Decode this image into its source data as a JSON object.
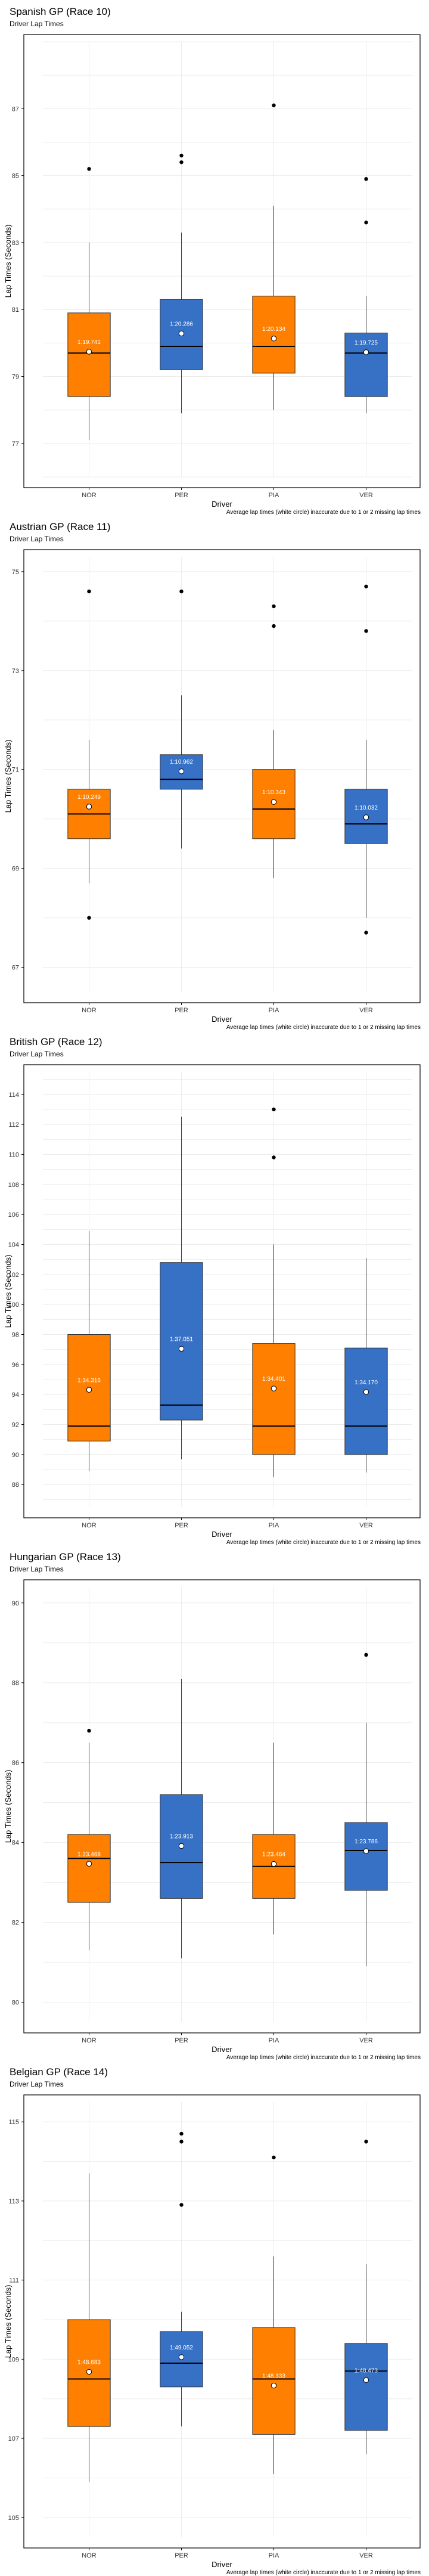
{
  "chart_data": [
    {
      "type": "box",
      "title": "Spanish GP (Race 10)",
      "subtitle": "Driver Lap Times",
      "xlabel": "Driver",
      "ylabel": "Lap Times (Seconds)",
      "ylim": [
        76,
        89
      ],
      "yticks": [
        77,
        79,
        81,
        83,
        85,
        87
      ],
      "note": "Average lap times (white circle) inaccurate due to 1 or 2 missing lap times",
      "grid": true,
      "colors": {
        "orange": "#FF8000",
        "blue": "#3671C6"
      },
      "drivers": [
        {
          "name": "NOR",
          "color": "#FF8000",
          "whisker_low": 77.1,
          "q1": 78.4,
          "median": 79.7,
          "q3": 80.9,
          "whisker_high": 83.0,
          "outliers": [
            85.2
          ],
          "mean": 79.741,
          "mean_label": "1:19.741"
        },
        {
          "name": "PER",
          "color": "#3671C6",
          "whisker_low": 77.9,
          "q1": 79.2,
          "median": 79.9,
          "q3": 81.3,
          "whisker_high": 83.3,
          "outliers": [
            85.4,
            85.6
          ],
          "mean": 80.286,
          "mean_label": "1:20.286"
        },
        {
          "name": "PIA",
          "color": "#FF8000",
          "whisker_low": 78.0,
          "q1": 79.1,
          "median": 79.9,
          "q3": 81.4,
          "whisker_high": 84.1,
          "outliers": [
            87.1
          ],
          "mean": 80.134,
          "mean_label": "1:20.134"
        },
        {
          "name": "VER",
          "color": "#3671C6",
          "whisker_low": 77.9,
          "q1": 78.4,
          "median": 79.7,
          "q3": 80.3,
          "whisker_high": 81.4,
          "outliers": [
            83.6,
            84.9
          ],
          "mean": 79.725,
          "mean_label": "1:19.725"
        }
      ]
    },
    {
      "type": "box",
      "title": "Austrian GP (Race 11)",
      "subtitle": "Driver Lap Times",
      "xlabel": "Driver",
      "ylabel": "Lap Times (Seconds)",
      "ylim": [
        66.5,
        75.3
      ],
      "yticks": [
        67,
        69,
        71,
        73,
        75
      ],
      "note": "Average lap times (white circle) inaccurate due to 1 or 2 missing lap times",
      "grid": true,
      "colors": {
        "orange": "#FF8000",
        "blue": "#3671C6"
      },
      "drivers": [
        {
          "name": "NOR",
          "color": "#FF8000",
          "whisker_low": 68.7,
          "q1": 69.6,
          "median": 70.1,
          "q3": 70.6,
          "whisker_high": 71.6,
          "outliers": [
            68.0,
            74.6
          ],
          "mean": 70.249,
          "mean_label": "1:10.249"
        },
        {
          "name": "PER",
          "color": "#3671C6",
          "whisker_low": 69.4,
          "q1": 70.6,
          "median": 70.8,
          "q3": 71.3,
          "whisker_high": 72.5,
          "outliers": [
            74.6
          ],
          "mean": 70.962,
          "mean_label": "1:10.962"
        },
        {
          "name": "PIA",
          "color": "#FF8000",
          "whisker_low": 68.8,
          "q1": 69.6,
          "median": 70.2,
          "q3": 71.0,
          "whisker_high": 71.8,
          "outliers": [
            73.9,
            74.3
          ],
          "mean": 70.343,
          "mean_label": "1:10.343"
        },
        {
          "name": "VER",
          "color": "#3671C6",
          "whisker_low": 68.0,
          "q1": 69.5,
          "median": 69.9,
          "q3": 70.6,
          "whisker_high": 71.6,
          "outliers": [
            67.7,
            73.8,
            74.7
          ],
          "mean": 70.032,
          "mean_label": "1:10.032"
        }
      ]
    },
    {
      "type": "box",
      "title": "British GP (Race 12)",
      "subtitle": "Driver Lap Times",
      "xlabel": "Driver",
      "ylabel": "Lap Times (Seconds)",
      "ylim": [
        86.5,
        115.5
      ],
      "yticks": [
        88,
        90,
        92,
        94,
        96,
        98,
        100,
        102,
        104,
        106,
        108,
        110,
        112,
        114
      ],
      "note": "Average lap times (white circle) inaccurate due to 1 or 2 missing lap times",
      "grid": true,
      "colors": {
        "orange": "#FF8000",
        "blue": "#3671C6"
      },
      "drivers": [
        {
          "name": "NOR",
          "color": "#FF8000",
          "whisker_low": 88.9,
          "q1": 90.9,
          "median": 91.9,
          "q3": 98.0,
          "whisker_high": 104.9,
          "outliers": [],
          "mean": 94.316,
          "mean_label": "1:34.316"
        },
        {
          "name": "PER",
          "color": "#3671C6",
          "whisker_low": 89.7,
          "q1": 92.3,
          "median": 93.3,
          "q3": 102.8,
          "whisker_high": 112.5,
          "outliers": [],
          "mean": 97.051,
          "mean_label": "1:37.051"
        },
        {
          "name": "PIA",
          "color": "#FF8000",
          "whisker_low": 88.5,
          "q1": 90.0,
          "median": 91.9,
          "q3": 97.4,
          "whisker_high": 104.0,
          "outliers": [
            109.8,
            113.0
          ],
          "mean": 94.401,
          "mean_label": "1:34.401"
        },
        {
          "name": "VER",
          "color": "#3671C6",
          "whisker_low": 88.8,
          "q1": 90.0,
          "median": 91.9,
          "q3": 97.1,
          "whisker_high": 103.1,
          "outliers": [],
          "mean": 94.17,
          "mean_label": "1:34.170"
        }
      ]
    },
    {
      "type": "box",
      "title": "Hungarian GP (Race 13)",
      "subtitle": "Driver Lap Times",
      "xlabel": "Driver",
      "ylabel": "Lap Times (Seconds)",
      "ylim": [
        79.5,
        90.4
      ],
      "yticks": [
        80,
        82,
        84,
        86,
        88,
        90
      ],
      "note": "Average lap times (white circle) inaccurate due to 1 or 2 missing lap times",
      "grid": true,
      "colors": {
        "orange": "#FF8000",
        "blue": "#3671C6"
      },
      "drivers": [
        {
          "name": "NOR",
          "color": "#FF8000",
          "whisker_low": 81.3,
          "q1": 82.5,
          "median": 83.6,
          "q3": 84.2,
          "whisker_high": 86.5,
          "outliers": [
            86.8
          ],
          "mean": 83.468,
          "mean_label": "1:23.468"
        },
        {
          "name": "PER",
          "color": "#3671C6",
          "whisker_low": 81.1,
          "q1": 82.6,
          "median": 83.5,
          "q3": 85.2,
          "whisker_high": 88.1,
          "outliers": [],
          "mean": 83.913,
          "mean_label": "1:23.913"
        },
        {
          "name": "PIA",
          "color": "#FF8000",
          "whisker_low": 81.7,
          "q1": 82.6,
          "median": 83.4,
          "q3": 84.2,
          "whisker_high": 86.5,
          "outliers": [],
          "mean": 83.464,
          "mean_label": "1:23.464"
        },
        {
          "name": "VER",
          "color": "#3671C6",
          "whisker_low": 80.9,
          "q1": 82.8,
          "median": 83.8,
          "q3": 84.5,
          "whisker_high": 87.0,
          "outliers": [
            88.7
          ],
          "mean": 83.786,
          "mean_label": "1:23.786"
        }
      ]
    },
    {
      "type": "box",
      "title": "Belgian GP (Race 14)",
      "subtitle": "Driver Lap Times",
      "xlabel": "Driver",
      "ylabel": "Lap Times (Seconds)",
      "ylim": [
        104.5,
        115.5
      ],
      "yticks": [
        105,
        107,
        109,
        111,
        113,
        115
      ],
      "note": "Average lap times (white circle) inaccurate due to 1 or 2 missing lap times",
      "grid": true,
      "colors": {
        "orange": "#FF8000",
        "blue": "#3671C6"
      },
      "drivers": [
        {
          "name": "NOR",
          "color": "#FF8000",
          "whisker_low": 105.9,
          "q1": 107.3,
          "median": 108.5,
          "q3": 110.0,
          "whisker_high": 113.7,
          "outliers": [],
          "mean": 108.683,
          "mean_label": "1:48.683"
        },
        {
          "name": "PER",
          "color": "#3671C6",
          "whisker_low": 107.3,
          "q1": 108.3,
          "median": 108.9,
          "q3": 109.7,
          "whisker_high": 110.2,
          "outliers": [
            112.9,
            114.5,
            114.7
          ],
          "mean": 109.052,
          "mean_label": "1:49.052"
        },
        {
          "name": "PIA",
          "color": "#FF8000",
          "whisker_low": 106.1,
          "q1": 107.1,
          "median": 108.5,
          "q3": 109.8,
          "whisker_high": 111.6,
          "outliers": [
            114.1
          ],
          "mean": 108.333,
          "mean_label": "1:48.333"
        },
        {
          "name": "VER",
          "color": "#3671C6",
          "whisker_low": 106.6,
          "q1": 107.2,
          "median": 108.7,
          "q3": 109.4,
          "whisker_high": 111.4,
          "outliers": [
            114.5
          ],
          "mean": 108.473,
          "mean_label": "1:48.473"
        }
      ]
    }
  ]
}
